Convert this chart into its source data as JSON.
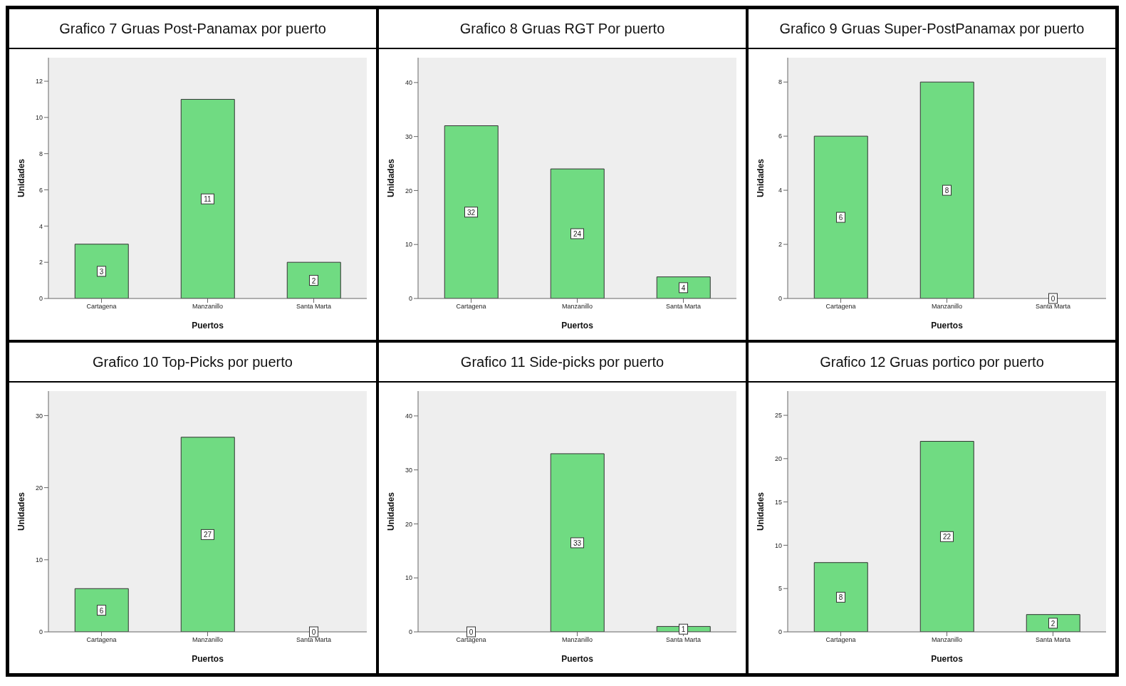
{
  "chart_data": [
    {
      "type": "bar",
      "title": "Grafico 7 Gruas Post-Panamax por puerto",
      "xlabel": "Puertos",
      "ylabel": "Unidades",
      "categories": [
        "Cartagena",
        "Manzanillo",
        "Santa Marta"
      ],
      "values": [
        3,
        11,
        2
      ],
      "color": "#70db82",
      "ylim": [
        0,
        13.3
      ],
      "yticks": [
        0,
        2,
        4,
        6,
        8,
        10,
        12
      ],
      "data_labels": true
    },
    {
      "type": "bar",
      "title": "Grafico 8 Gruas RGT Por puerto",
      "xlabel": "Puertos",
      "ylabel": "Unidades",
      "categories": [
        "Cartagena",
        "Manzanillo",
        "Santa Marta"
      ],
      "values": [
        32,
        24,
        4
      ],
      "color": "#70db82",
      "ylim": [
        0,
        44.6
      ],
      "yticks": [
        0,
        10,
        20,
        30,
        40
      ],
      "data_labels": true
    },
    {
      "type": "bar",
      "title": "Grafico 9 Gruas Super-PostPanamax por puerto",
      "xlabel": "Puertos",
      "ylabel": "Unidades",
      "categories": [
        "Cartagena",
        "Manzanillo",
        "Santa Marta"
      ],
      "values": [
        6,
        8,
        0
      ],
      "color": "#70db82",
      "ylim": [
        0,
        8.9
      ],
      "yticks": [
        0,
        2,
        4,
        6,
        8
      ],
      "data_labels": true
    },
    {
      "type": "bar",
      "title": "Grafico 10 Top-Picks por puerto",
      "xlabel": "Puertos",
      "ylabel": "Unidades",
      "categories": [
        "Cartagena",
        "Manzanillo",
        "Santa Marta"
      ],
      "values": [
        6,
        27,
        0
      ],
      "color": "#70db82",
      "ylim": [
        0,
        33.4
      ],
      "yticks": [
        0,
        10,
        20,
        30
      ],
      "data_labels": true
    },
    {
      "type": "bar",
      "title": "Grafico 11 Side-picks por puerto",
      "xlabel": "Puertos",
      "ylabel": "Unidades",
      "categories": [
        "Cartagena",
        "Manzanillo",
        "Santa Marta"
      ],
      "values": [
        0,
        33,
        1
      ],
      "color": "#70db82",
      "ylim": [
        0,
        44.6
      ],
      "yticks": [
        0,
        10,
        20,
        30,
        40
      ],
      "data_labels": true
    },
    {
      "type": "bar",
      "title": "Grafico 12 Gruas portico por puerto",
      "xlabel": "Puertos",
      "ylabel": "Unidades",
      "categories": [
        "Cartagena",
        "Manzanillo",
        "Santa Marta"
      ],
      "values": [
        8,
        22,
        2
      ],
      "color": "#70db82",
      "ylim": [
        0,
        27.8
      ],
      "yticks": [
        0,
        5,
        10,
        15,
        20,
        25
      ],
      "data_labels": true
    }
  ]
}
